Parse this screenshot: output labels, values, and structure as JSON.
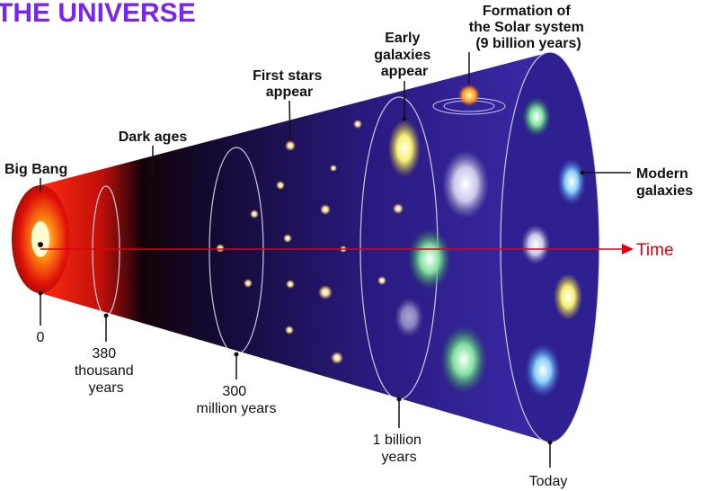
{
  "title": "THE UNIVERSE",
  "labels": {
    "big_bang": "Big Bang",
    "dark_ages": "Dark ages",
    "first_stars": [
      "First stars",
      "appear"
    ],
    "early_galaxies": [
      "Early",
      "galaxies",
      "appear"
    ],
    "solar_system": [
      "Formation of",
      "the Solar system",
      "(9 billion years)"
    ],
    "modern_galaxies": [
      "Modern",
      "galaxies"
    ],
    "time": "Time"
  },
  "timeline": {
    "t0": [
      "0"
    ],
    "t1": [
      "380",
      "thousand",
      "years"
    ],
    "t2": [
      "300",
      "million years"
    ],
    "t3": [
      "1 billion",
      "years"
    ],
    "t4": [
      "Today"
    ]
  }
}
